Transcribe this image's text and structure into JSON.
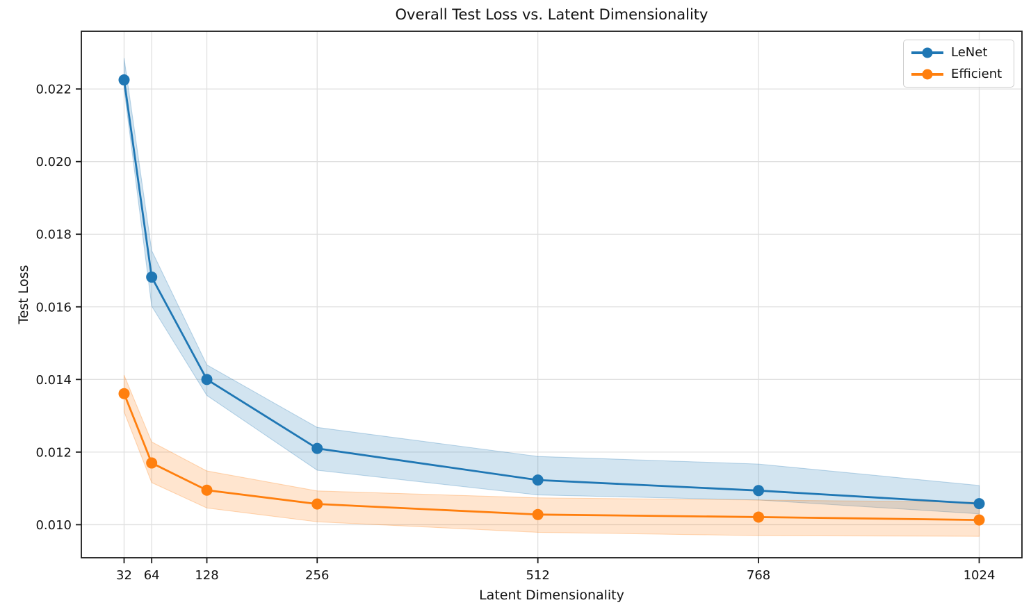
{
  "figure": {
    "title": "Overall Test Loss vs. Latent Dimensionality",
    "xlabel": "Latent Dimensionality",
    "ylabel": "Test Loss"
  },
  "legend": {
    "position": "upper right",
    "items": [
      {
        "label": "LeNet",
        "color": "#1f77b4"
      },
      {
        "label": "Efficient",
        "color": "#ff7f0e"
      }
    ]
  },
  "chart_data": {
    "type": "line",
    "title": "Overall Test Loss vs. Latent Dimensionality",
    "xlabel": "Latent Dimensionality",
    "ylabel": "Test Loss",
    "x": [
      32,
      64,
      128,
      256,
      512,
      768,
      1024
    ],
    "x_tick_labels": [
      "32",
      "64",
      "128",
      "256",
      "512",
      "768",
      "1024"
    ],
    "y_ticks": [
      0.01,
      0.012,
      0.014,
      0.016,
      0.018,
      0.02,
      0.022
    ],
    "y_tick_labels": [
      "0.010",
      "0.012",
      "0.014",
      "0.016",
      "0.018",
      "0.020",
      "0.022"
    ],
    "xlim": [
      -17.6,
      1073.6
    ],
    "ylim": [
      0.00909,
      0.02359
    ],
    "grid": true,
    "marker": "o",
    "legend_position": "upper right",
    "series": [
      {
        "name": "LeNet",
        "color": "#1f77b4",
        "values": [
          0.02225,
          0.01682,
          0.014,
          0.0121,
          0.01123,
          0.01094,
          0.01058
        ],
        "band_upper": [
          0.02285,
          0.01755,
          0.0144,
          0.01268,
          0.01188,
          0.01167,
          0.01108
        ],
        "band_lower": [
          0.022,
          0.01602,
          0.01356,
          0.0115,
          0.01082,
          0.01068,
          0.0103
        ]
      },
      {
        "name": "Efficient",
        "color": "#ff7f0e",
        "values": [
          0.01361,
          0.0117,
          0.01095,
          0.01057,
          0.01028,
          0.01021,
          0.01013
        ],
        "band_upper": [
          0.01412,
          0.01228,
          0.01148,
          0.01093,
          0.01074,
          0.01068,
          0.01062
        ],
        "band_lower": [
          0.01311,
          0.01116,
          0.01046,
          0.01008,
          0.00979,
          0.0097,
          0.00968
        ]
      }
    ],
    "style": {
      "grid_color": "#e0e0e0",
      "spine_color": "#1a1a1a",
      "band_opacity": 0.2,
      "line_width": 2.8,
      "marker_radius": 8
    }
  }
}
